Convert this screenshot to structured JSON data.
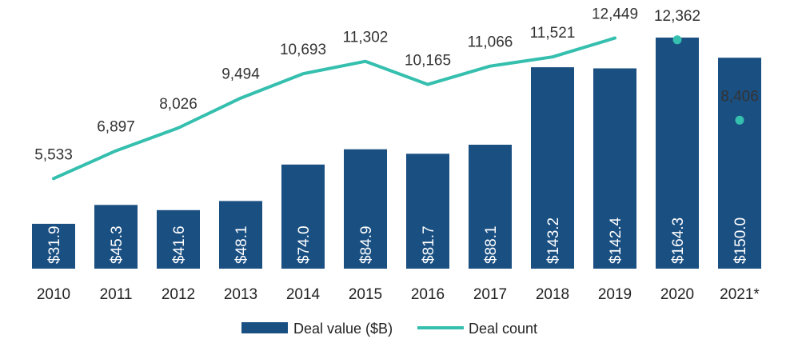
{
  "chart_data": {
    "type": "bar",
    "categories": [
      "2010",
      "2011",
      "2012",
      "2013",
      "2014",
      "2015",
      "2016",
      "2017",
      "2018",
      "2019",
      "2020",
      "2021*"
    ],
    "series": [
      {
        "name": "Deal value ($B)",
        "type": "bar",
        "values": [
          31.9,
          45.3,
          41.6,
          48.1,
          74.0,
          84.9,
          81.7,
          88.1,
          143.2,
          142.4,
          164.3,
          150.0
        ],
        "labels": [
          "$31.9",
          "$45.3",
          "$41.6",
          "$48.1",
          "$74.0",
          "$84.9",
          "$81.7",
          "$88.1",
          "$143.2",
          "$142.4",
          "$164.3",
          "$150.0"
        ]
      },
      {
        "name": "Deal count",
        "type": "line",
        "values": [
          5533,
          6897,
          8026,
          9494,
          10693,
          11302,
          10165,
          11066,
          11521,
          12449,
          12362,
          8406
        ],
        "labels": [
          "5,533",
          "6,897",
          "8,026",
          "9,494",
          "10,693",
          "11,302",
          "10,165",
          "11,066",
          "11,521",
          "12,449",
          "12,362",
          "8,406"
        ],
        "line_through_index": 9
      }
    ],
    "legend": {
      "position": "bottom"
    },
    "grid": false,
    "colors": {
      "bar": "#1a4f82",
      "line": "#35bfae"
    }
  }
}
